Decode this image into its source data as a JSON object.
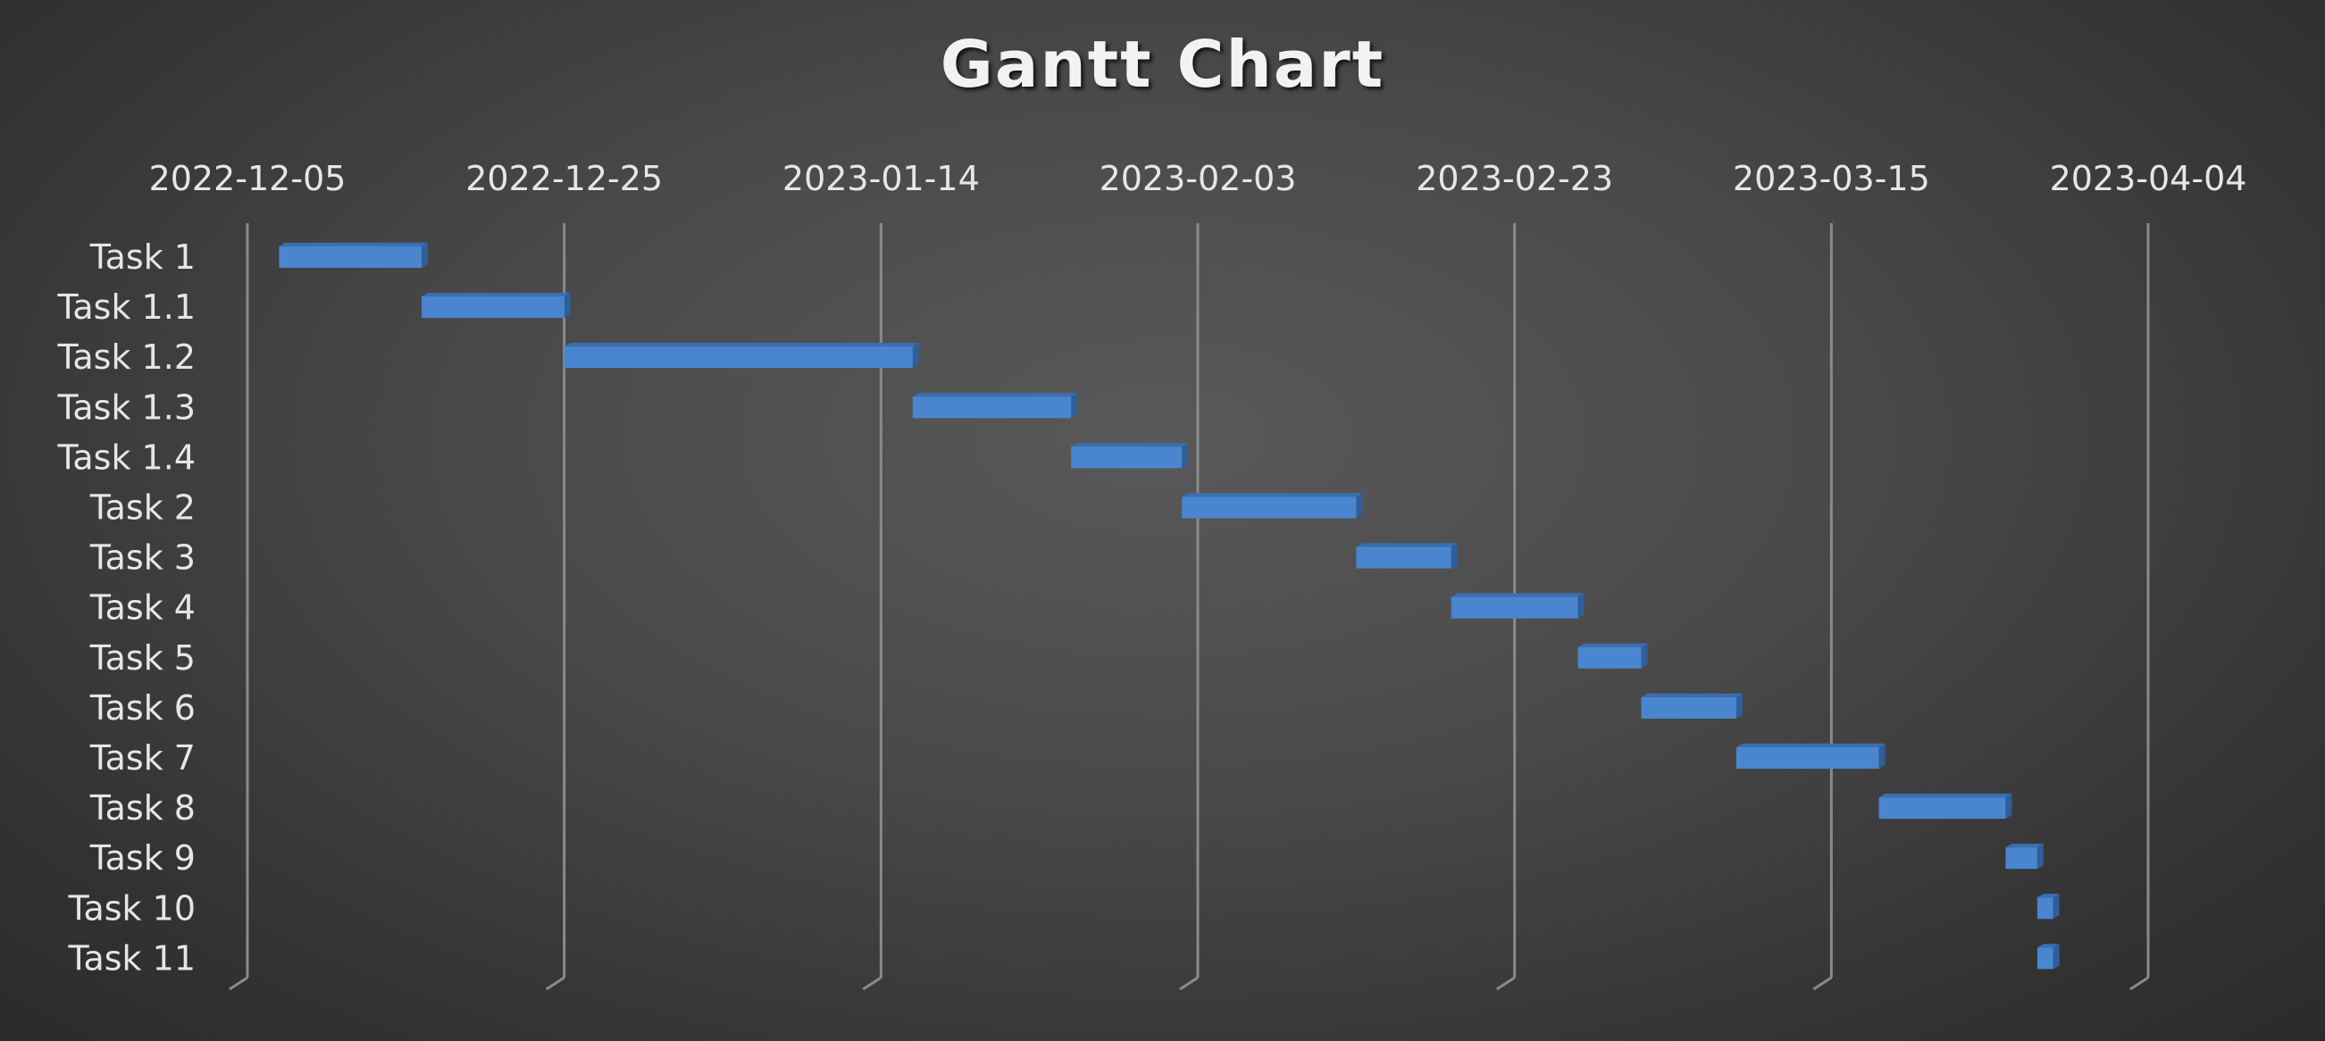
{
  "chart_data": {
    "type": "bar",
    "orientation": "horizontal-gantt",
    "title": "Gantt Chart",
    "xlabel": "",
    "ylabel": "",
    "x_axis_position": "top",
    "x_ticks": [
      "2022-12-05",
      "2022-12-25",
      "2023-01-14",
      "2023-02-03",
      "2023-02-23",
      "2023-03-15",
      "2023-04-04"
    ],
    "xlim": [
      "2022-12-05",
      "2023-04-04"
    ],
    "grid": true,
    "legend": "none",
    "bar_color": "#4a86cf",
    "bar_side_color": "#2f5f9a",
    "bar_top_color": "#3a6fb0",
    "tasks": [
      {
        "name": "Task 1",
        "start": "2022-12-07",
        "end": "2022-12-16"
      },
      {
        "name": "Task 1.1",
        "start": "2022-12-16",
        "end": "2022-12-25"
      },
      {
        "name": "Task 1.2",
        "start": "2022-12-25",
        "end": "2023-01-16"
      },
      {
        "name": "Task 1.3",
        "start": "2023-01-16",
        "end": "2023-01-26"
      },
      {
        "name": "Task 1.4",
        "start": "2023-01-26",
        "end": "2023-02-02"
      },
      {
        "name": "Task 2",
        "start": "2023-02-02",
        "end": "2023-02-13"
      },
      {
        "name": "Task 3",
        "start": "2023-02-13",
        "end": "2023-02-19"
      },
      {
        "name": "Task 4",
        "start": "2023-02-19",
        "end": "2023-02-27"
      },
      {
        "name": "Task 5",
        "start": "2023-02-27",
        "end": "2023-03-03"
      },
      {
        "name": "Task 6",
        "start": "2023-03-03",
        "end": "2023-03-09"
      },
      {
        "name": "Task 7",
        "start": "2023-03-09",
        "end": "2023-03-18"
      },
      {
        "name": "Task 8",
        "start": "2023-03-18",
        "end": "2023-03-26"
      },
      {
        "name": "Task 9",
        "start": "2023-03-26",
        "end": "2023-03-28"
      },
      {
        "name": "Task 10",
        "start": "2023-03-28",
        "end": "2023-03-29"
      },
      {
        "name": "Task 11",
        "start": "2023-03-28",
        "end": "2023-03-29"
      }
    ]
  }
}
